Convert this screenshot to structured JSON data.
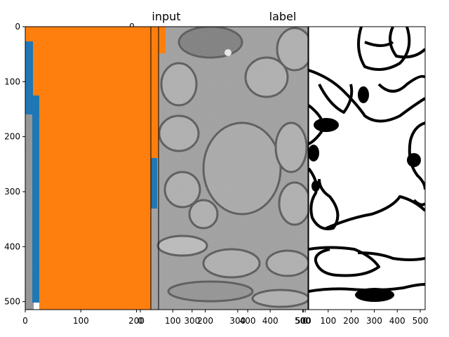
{
  "titles": {
    "left": "input",
    "right": "label"
  },
  "axes": {
    "left": {
      "xticks": [
        "0",
        "100",
        "200",
        "300",
        "400",
        "500"
      ],
      "yticks": [
        "0",
        "100",
        "200",
        "300",
        "400",
        "500"
      ]
    },
    "mid": {
      "xticks": [
        "0",
        "100",
        "200",
        "300",
        "400",
        "500"
      ]
    },
    "right": {
      "xticks": [
        "0",
        "100",
        "200",
        "300",
        "400",
        "500"
      ]
    }
  },
  "stray_label": "0",
  "colors": {
    "blue": "#1f77b4",
    "orange": "#ff7f0e"
  }
}
